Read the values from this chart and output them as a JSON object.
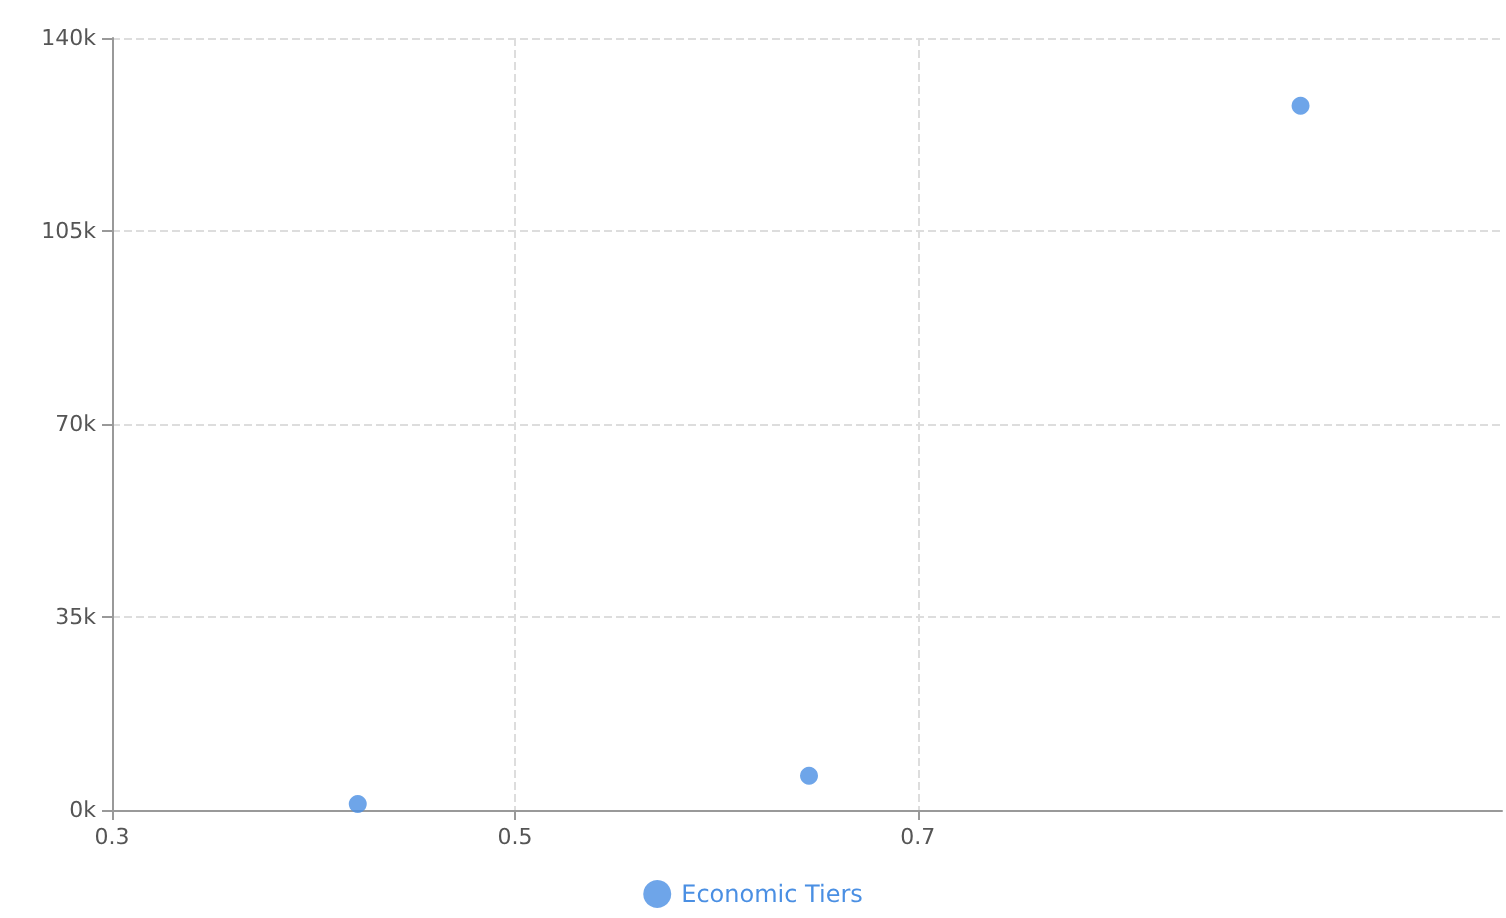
{
  "chart_data": {
    "type": "scatter",
    "legend": "bottom",
    "grid": true,
    "marker": "circle",
    "xlim": [
      0.3,
      0.99
    ],
    "xticks": [
      0.3,
      0.5,
      0.7
    ],
    "ylim": [
      0,
      140000
    ],
    "yticks": [
      {
        "value": 0,
        "label": "0k"
      },
      {
        "value": 35000,
        "label": "35k"
      },
      {
        "value": 70000,
        "label": "70k"
      },
      {
        "value": 105000,
        "label": "105k"
      },
      {
        "value": 140000,
        "label": "140k"
      }
    ],
    "series": [
      {
        "name": "Economic Tiers",
        "color": "#4a8fe3",
        "x": [
          0.422,
          0.646,
          0.89
        ],
        "values": [
          1100,
          6200,
          127700
        ]
      }
    ]
  }
}
